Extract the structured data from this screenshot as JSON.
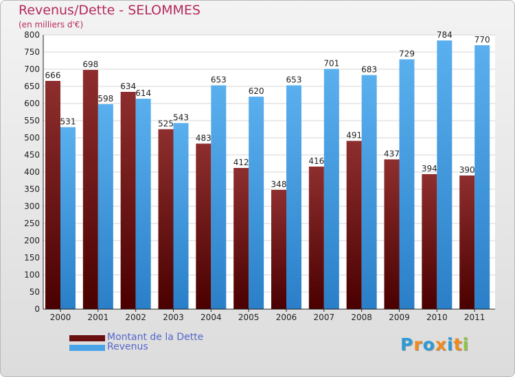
{
  "title": "Revenus/Dette - SELOMMES",
  "subtitle": "(en milliers d'€)",
  "brand": {
    "text": "Proxiti",
    "letter_colors": [
      "#2e9bd6",
      "#f08a1d",
      "#2e9bd6",
      "#f08a1d",
      "#2e9bd6",
      "#f08a1d",
      "#8dc63f"
    ]
  },
  "chart_data": {
    "type": "bar",
    "title": "Revenus/Dette - SELOMMES",
    "ylabel": "(en milliers d'€)",
    "ylim": [
      0,
      800
    ],
    "yticks": [
      0,
      50,
      100,
      150,
      200,
      250,
      300,
      350,
      400,
      450,
      500,
      550,
      600,
      650,
      700,
      750,
      800
    ],
    "grid": true,
    "legend_position": "bottom-left",
    "categories": [
      "2000",
      "2001",
      "2002",
      "2003",
      "2004",
      "2005",
      "2006",
      "2007",
      "2008",
      "2009",
      "2010",
      "2011"
    ],
    "series": [
      {
        "name": "Montant de la Dette",
        "color": "#7a1a1a",
        "values": [
          666,
          698,
          634,
          525,
          483,
          412,
          348,
          416,
          491,
          437,
          394,
          390
        ]
      },
      {
        "name": "Revenus",
        "color": "#4aa3e6",
        "values": [
          531,
          598,
          614,
          543,
          653,
          620,
          653,
          701,
          683,
          729,
          784,
          770
        ]
      }
    ]
  }
}
